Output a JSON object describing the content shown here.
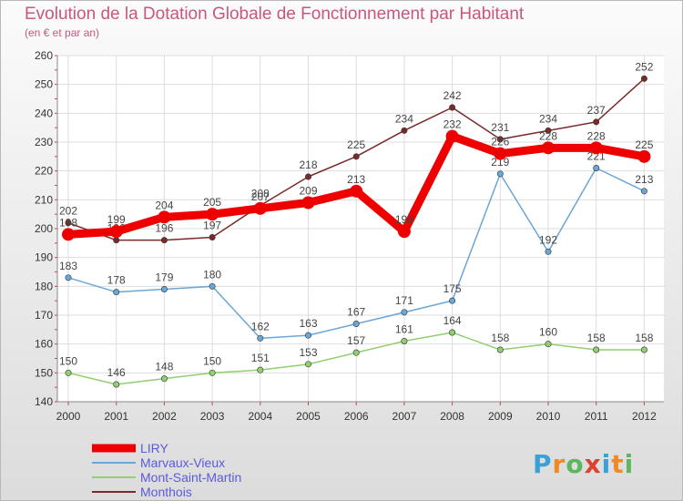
{
  "header": {
    "title": "Evolution de la Dotation Globale de Fonctionnement par Habitant",
    "subtitle": "(en € et par an)"
  },
  "logo": {
    "letters": [
      "P",
      "r",
      "o",
      "x",
      "i",
      "t",
      "i"
    ],
    "colors": [
      "#3aa0d8",
      "#f08a24",
      "#5cb85c",
      "#d9432f",
      "#3aa0d8",
      "#f08a24",
      "#5cb85c"
    ]
  },
  "chart_data": {
    "type": "line",
    "x": [
      "2000",
      "2001",
      "2002",
      "2003",
      "2004",
      "2005",
      "2006",
      "2007",
      "2008",
      "2009",
      "2010",
      "2011",
      "2012"
    ],
    "ylim": [
      140,
      260
    ],
    "yticks": [
      140,
      150,
      160,
      170,
      180,
      190,
      200,
      210,
      220,
      230,
      240,
      250,
      260
    ],
    "grid": true,
    "legend_position": "bottom-left",
    "series": [
      {
        "name": "Monthois",
        "color": "#7a2a2a",
        "values": [
          202,
          196,
          196,
          197,
          208,
          218,
          225,
          234,
          242,
          231,
          234,
          237,
          252
        ]
      },
      {
        "name": "Mont-Saint-Martin",
        "color": "#90d070",
        "values": [
          150,
          146,
          148,
          150,
          151,
          153,
          157,
          161,
          164,
          158,
          160,
          158,
          158
        ]
      },
      {
        "name": "Marvaux-Vieux",
        "color": "#6aa6d6",
        "values": [
          183,
          178,
          179,
          180,
          162,
          163,
          167,
          171,
          175,
          219,
          192,
          221,
          213
        ]
      },
      {
        "name": "LIRY",
        "color": "#ee0000",
        "values": [
          198,
          199,
          204,
          205,
          207,
          209,
          213,
          199,
          232,
          226,
          228,
          228,
          225
        ]
      }
    ],
    "legend_order": [
      "LIRY",
      "Marvaux-Vieux",
      "Mont-Saint-Martin",
      "Monthois"
    ]
  }
}
